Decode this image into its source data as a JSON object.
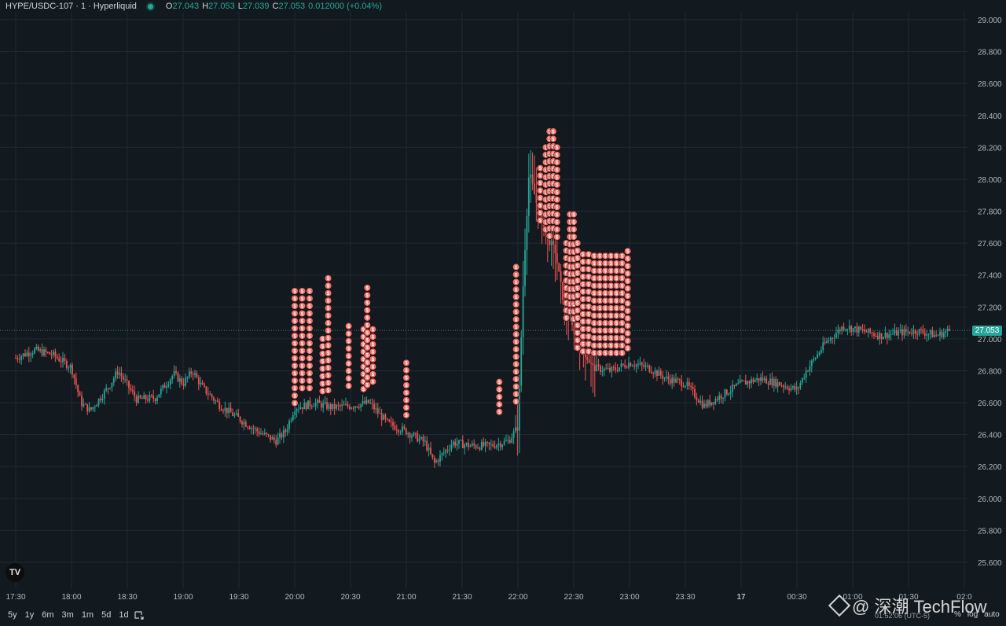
{
  "header": {
    "symbol": "HYPE/USDC-107 · 1 · Hyperliquid",
    "o_label": "O",
    "o": "27.043",
    "h_label": "H",
    "h": "27.053",
    "l_label": "L",
    "l": "27.039",
    "c_label": "C",
    "c": "27.053",
    "change": "0.012000 (+0.04%)"
  },
  "last_price_tag": "27.053",
  "logo": "TV",
  "ranges": [
    "5y",
    "1y",
    "6m",
    "3m",
    "1m",
    "5d",
    "1d"
  ],
  "clock": "01:52:06 (UTC-5)",
  "right_options": [
    "%",
    "log",
    "auto"
  ],
  "watermark": "@ 深潮 TechFlow",
  "colors": {
    "background": "#131a1f",
    "up": "#26a69a",
    "down": "#ef5350",
    "marker": "#f0706a"
  },
  "chart_data": {
    "type": "candlestick",
    "y_ticks": [
      "29.000",
      "28.800",
      "28.600",
      "28.400",
      "28.200",
      "28.000",
      "27.800",
      "27.600",
      "27.400",
      "27.200",
      "27.000",
      "26.800",
      "26.600",
      "26.400",
      "26.200",
      "26.000",
      "25.800",
      "25.600"
    ],
    "ylim": [
      25.5,
      29.1
    ],
    "x_ticks": [
      "17:30",
      "18:00",
      "18:30",
      "19:00",
      "19:30",
      "20:00",
      "20:30",
      "21:00",
      "21:30",
      "22:00",
      "22:30",
      "23:00",
      "23:30",
      "17",
      "00:30",
      "01:00",
      "01:30",
      "02:0"
    ],
    "last_price": 27.053,
    "grid": true,
    "price_path": [
      [
        "17:30",
        26.88
      ],
      [
        "17:40",
        26.93
      ],
      [
        "17:50",
        26.9
      ],
      [
        "18:00",
        26.82
      ],
      [
        "18:05",
        26.6
      ],
      [
        "18:10",
        26.55
      ],
      [
        "18:20",
        26.7
      ],
      [
        "18:25",
        26.8
      ],
      [
        "18:35",
        26.62
      ],
      [
        "18:45",
        26.63
      ],
      [
        "18:55",
        26.78
      ],
      [
        "19:00",
        26.72
      ],
      [
        "19:05",
        26.8
      ],
      [
        "19:10",
        26.7
      ],
      [
        "19:20",
        26.58
      ],
      [
        "19:30",
        26.5
      ],
      [
        "19:40",
        26.42
      ],
      [
        "19:50",
        26.36
      ],
      [
        "19:55",
        26.42
      ],
      [
        "20:00",
        26.57
      ],
      [
        "20:05",
        26.58
      ],
      [
        "20:10",
        26.6
      ],
      [
        "20:20",
        26.57
      ],
      [
        "20:30",
        26.58
      ],
      [
        "20:40",
        26.6
      ],
      [
        "20:50",
        26.47
      ],
      [
        "21:00",
        26.42
      ],
      [
        "21:10",
        26.35
      ],
      [
        "21:15",
        26.22
      ],
      [
        "21:25",
        26.35
      ],
      [
        "21:35",
        26.33
      ],
      [
        "21:45",
        26.33
      ],
      [
        "21:55",
        26.36
      ],
      [
        "22:00",
        26.45
      ],
      [
        "22:03",
        27.4
      ],
      [
        "22:06",
        28.05
      ],
      [
        "22:10",
        27.85
      ],
      [
        "22:15",
        27.65
      ],
      [
        "22:20",
        27.55
      ],
      [
        "22:25",
        27.2
      ],
      [
        "22:30",
        27.05
      ],
      [
        "22:40",
        26.82
      ],
      [
        "22:50",
        26.8
      ],
      [
        "23:00",
        26.85
      ],
      [
        "23:10",
        26.82
      ],
      [
        "23:20",
        26.75
      ],
      [
        "23:30",
        26.72
      ],
      [
        "23:40",
        26.58
      ],
      [
        "23:50",
        26.65
      ],
      [
        "00:00",
        26.72
      ],
      [
        "00:10",
        26.75
      ],
      [
        "00:20",
        26.72
      ],
      [
        "00:30",
        26.68
      ],
      [
        "00:35",
        26.8
      ],
      [
        "00:45",
        26.97
      ],
      [
        "00:55",
        27.08
      ],
      [
        "01:05",
        27.05
      ],
      [
        "01:15",
        27.02
      ],
      [
        "01:25",
        27.04
      ],
      [
        "01:35",
        27.05
      ],
      [
        "01:45",
        27.02
      ],
      [
        "01:52",
        27.053
      ]
    ],
    "trade_marker_columns": [
      {
        "time": "20:00",
        "top": 27.3,
        "bottom": 26.58
      },
      {
        "time": "20:04",
        "top": 27.3,
        "bottom": 26.65
      },
      {
        "time": "20:08",
        "top": 27.3,
        "bottom": 26.68
      },
      {
        "time": "20:15",
        "top": 27.0,
        "bottom": 26.65
      },
      {
        "time": "20:18",
        "top": 27.38,
        "bottom": 26.65
      },
      {
        "time": "20:29",
        "top": 27.08,
        "bottom": 26.66
      },
      {
        "time": "20:37",
        "top": 27.06,
        "bottom": 26.68
      },
      {
        "time": "20:39",
        "top": 27.32,
        "bottom": 26.7
      },
      {
        "time": "20:42",
        "top": 27.06,
        "bottom": 26.7
      },
      {
        "time": "21:00",
        "top": 26.85,
        "bottom": 26.48
      },
      {
        "time": "21:50",
        "top": 26.73,
        "bottom": 26.52
      },
      {
        "time": "21:59",
        "top": 27.45,
        "bottom": 26.6
      },
      {
        "time": "22:12",
        "top": 28.07,
        "bottom": 27.7
      },
      {
        "time": "22:15",
        "top": 28.2,
        "bottom": 27.65
      },
      {
        "time": "22:17",
        "top": 28.3,
        "bottom": 27.6
      },
      {
        "time": "22:19",
        "top": 28.3,
        "bottom": 27.65
      },
      {
        "time": "22:21",
        "top": 28.2,
        "bottom": 27.6
      },
      {
        "time": "22:26",
        "top": 27.6,
        "bottom": 27.1
      },
      {
        "time": "22:28",
        "top": 27.78,
        "bottom": 27.15
      },
      {
        "time": "22:30",
        "top": 27.78,
        "bottom": 27.1
      },
      {
        "time": "22:32",
        "top": 27.6,
        "bottom": 26.92
      },
      {
        "time": "22:35",
        "top": 27.53,
        "bottom": 26.9
      },
      {
        "time": "22:38",
        "top": 27.53,
        "bottom": 26.9
      },
      {
        "time": "22:41",
        "top": 27.52,
        "bottom": 26.9
      },
      {
        "time": "22:44",
        "top": 27.52,
        "bottom": 26.9
      },
      {
        "time": "22:47",
        "top": 27.52,
        "bottom": 26.9
      },
      {
        "time": "22:50",
        "top": 27.52,
        "bottom": 26.9
      },
      {
        "time": "22:53",
        "top": 27.52,
        "bottom": 26.9
      },
      {
        "time": "22:56",
        "top": 27.52,
        "bottom": 26.9
      },
      {
        "time": "22:59",
        "top": 27.55,
        "bottom": 26.92
      }
    ]
  }
}
